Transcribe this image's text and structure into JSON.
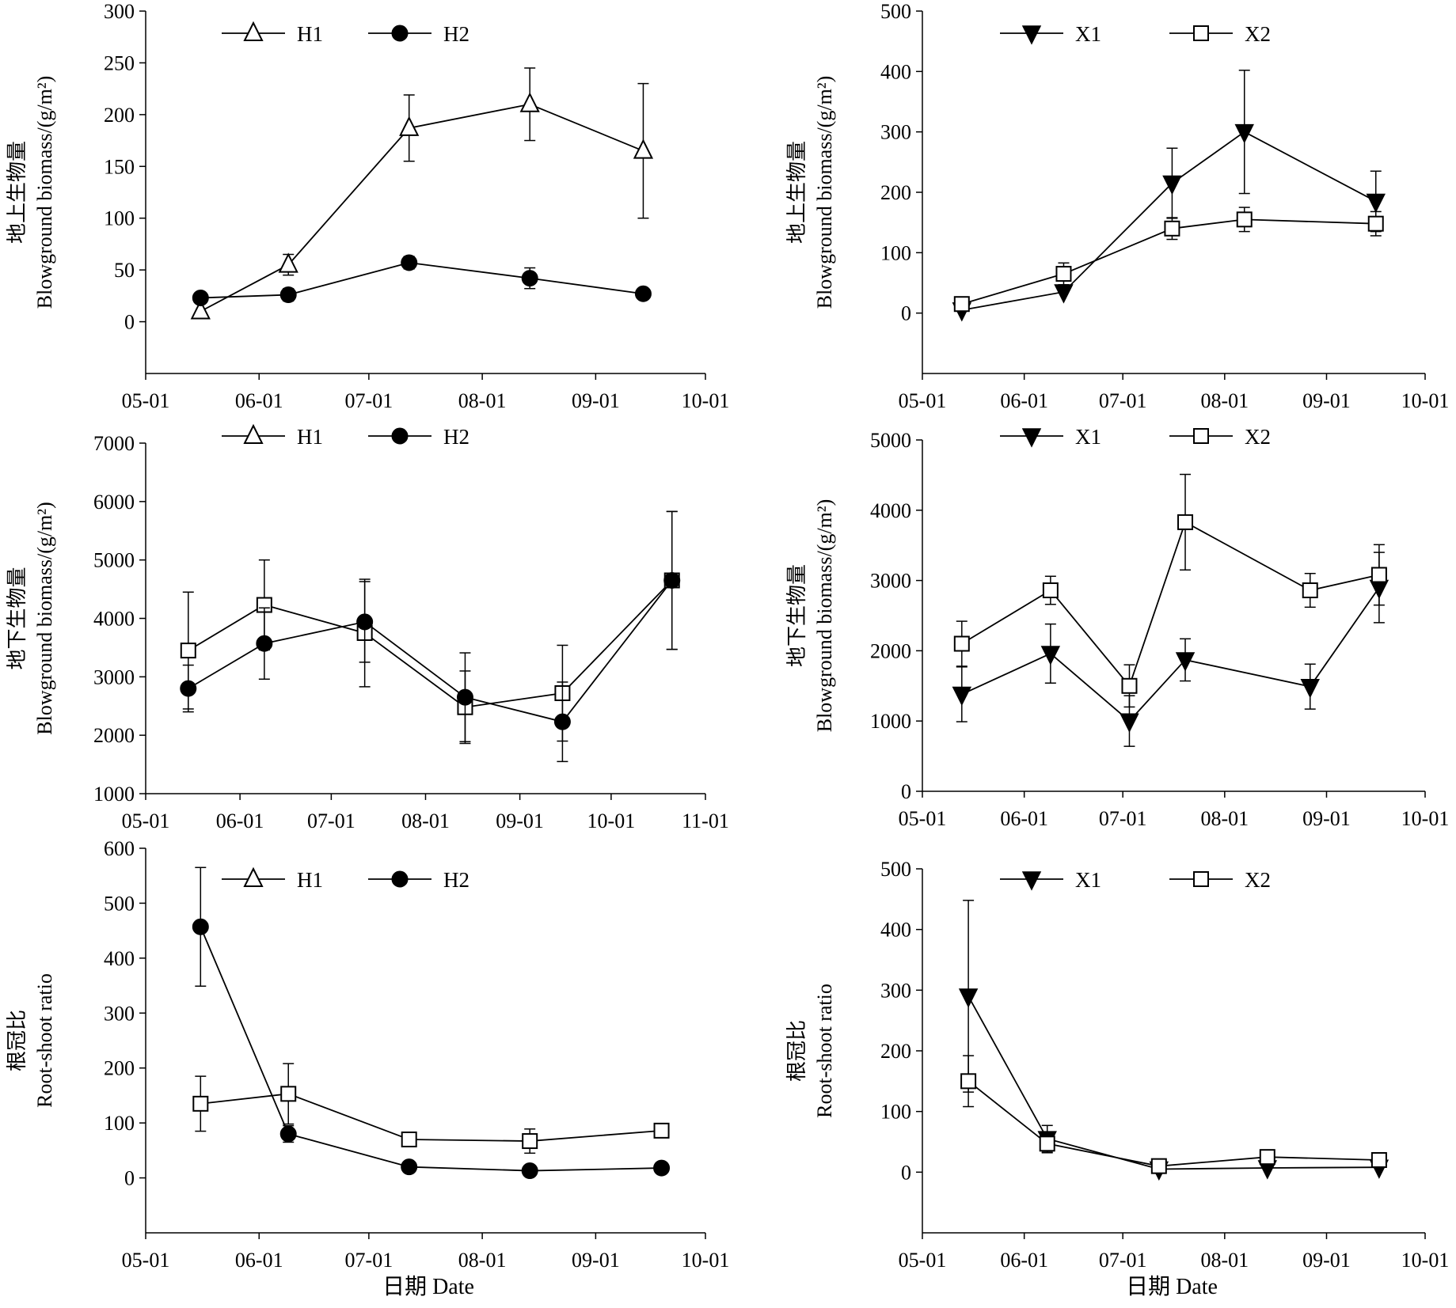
{
  "figure": {
    "x_axis_title": "日期 Date"
  },
  "chart_data": [
    {
      "type": "line",
      "panel": "top-left",
      "ylabel_zh": "地上生物量",
      "ylabel_en": "Blowground biomass/(g/m²)",
      "ylim": [
        -50,
        300
      ],
      "yticks": [
        0,
        50,
        100,
        150,
        200,
        250,
        300
      ],
      "xticks": [
        "05-01",
        "06-01",
        "07-01",
        "08-01",
        "09-01",
        "10-01"
      ],
      "xlim": [
        "05-01",
        "10-01"
      ],
      "legend_position": "top-center",
      "series": [
        {
          "name": "H1",
          "marker": "triangle-open",
          "x": [
            "05-16",
            "06-09",
            "07-12",
            "08-14",
            "09-14"
          ],
          "y": [
            10,
            55,
            187,
            210,
            165
          ],
          "err": [
            0,
            10,
            32,
            35,
            65
          ]
        },
        {
          "name": "H2",
          "marker": "circle-filled",
          "x": [
            "05-16",
            "06-09",
            "07-12",
            "08-14",
            "09-14"
          ],
          "y": [
            23,
            26,
            57,
            42,
            27
          ],
          "err": [
            0,
            6,
            6,
            10,
            0
          ]
        }
      ]
    },
    {
      "type": "line",
      "panel": "top-right",
      "ylabel_zh": "地上生物量",
      "ylabel_en": "Blowground biomass/(g/m²)",
      "ylim": [
        -100,
        500
      ],
      "yticks": [
        0,
        100,
        200,
        300,
        400,
        500
      ],
      "xticks": [
        "05-01",
        "06-01",
        "07-01",
        "08-01",
        "09-01",
        "10-01"
      ],
      "xlim": [
        "05-01",
        "10-01"
      ],
      "legend_position": "top-center",
      "series": [
        {
          "name": "X1",
          "marker": "triangle-down-filled",
          "x": [
            "05-13",
            "06-13",
            "07-16",
            "08-07",
            "09-16"
          ],
          "y": [
            5,
            35,
            215,
            300,
            185
          ],
          "err": [
            0,
            0,
            58,
            102,
            50
          ]
        },
        {
          "name": "X2",
          "marker": "square-open",
          "x": [
            "05-13",
            "06-13",
            "07-16",
            "08-07",
            "09-16"
          ],
          "y": [
            15,
            65,
            140,
            155,
            148
          ],
          "err": [
            0,
            18,
            18,
            20,
            20
          ]
        }
      ]
    },
    {
      "type": "line",
      "panel": "middle-left",
      "ylabel_zh": "地下生物量",
      "ylabel_en": "Blowground biomass/(g/m²)",
      "ylim": [
        1000,
        7000
      ],
      "yticks": [
        1000,
        2000,
        3000,
        4000,
        5000,
        6000,
        7000
      ],
      "xticks": [
        "05-01",
        "06-01",
        "07-01",
        "08-01",
        "09-01",
        "10-01",
        "11-01"
      ],
      "xlim": [
        "05-01",
        "11-01"
      ],
      "legend_position": "top-center",
      "legend": [
        "H1",
        "H2"
      ],
      "series": [
        {
          "name": "",
          "marker": "square-open",
          "x": [
            "05-15",
            "06-09",
            "07-12",
            "08-14",
            "09-15",
            "10-21"
          ],
          "y": [
            3450,
            4230,
            3750,
            2480,
            2720,
            4650
          ],
          "err": [
            1000,
            770,
            920,
            620,
            820,
            1180
          ]
        },
        {
          "name": "",
          "marker": "circle-filled",
          "x": [
            "05-15",
            "06-09",
            "07-12",
            "08-14",
            "09-15",
            "10-21"
          ],
          "y": [
            2800,
            3570,
            3940,
            2650,
            2230,
            4650
          ],
          "err": [
            400,
            610,
            690,
            760,
            680,
            1180
          ]
        }
      ]
    },
    {
      "type": "line",
      "panel": "middle-right",
      "ylabel_zh": "地下生物量",
      "ylabel_en": "Blowground biomass/(g/m²)",
      "ylim": [
        0,
        5000
      ],
      "yticks": [
        0,
        1000,
        2000,
        3000,
        4000,
        5000
      ],
      "xticks": [
        "05-01",
        "06-01",
        "07-01",
        "08-01",
        "09-01",
        "10-01"
      ],
      "xlim": [
        "05-01",
        "10-01"
      ],
      "legend_position": "top-center",
      "series": [
        {
          "name": "X1",
          "marker": "triangle-down-filled",
          "x": [
            "05-13",
            "06-09",
            "07-03",
            "07-20",
            "08-27",
            "09-17"
          ],
          "y": [
            1380,
            1960,
            1000,
            1870,
            1490,
            2900
          ],
          "err": [
            390,
            420,
            360,
            300,
            320,
            500
          ]
        },
        {
          "name": "X2",
          "marker": "square-open",
          "x": [
            "05-13",
            "06-09",
            "07-03",
            "07-20",
            "08-27",
            "09-17"
          ],
          "y": [
            2100,
            2860,
            1500,
            3830,
            2860,
            3080
          ],
          "err": [
            320,
            200,
            300,
            680,
            240,
            430
          ]
        }
      ]
    },
    {
      "type": "line",
      "panel": "bottom-left",
      "ylabel_zh": "根冠比",
      "ylabel_en": "Root-shoot ratio",
      "ylim": [
        -100,
        600
      ],
      "yticks": [
        0,
        100,
        200,
        300,
        400,
        500,
        600
      ],
      "xticks": [
        "05-01",
        "06-01",
        "07-01",
        "08-01",
        "09-01",
        "10-01"
      ],
      "xlim": [
        "05-01",
        "10-01"
      ],
      "legend_position": "top-center",
      "legend": [
        "H1",
        "H2"
      ],
      "series": [
        {
          "name": "",
          "marker": "square-open",
          "x": [
            "05-16",
            "06-09",
            "07-12",
            "08-14",
            "09-19"
          ],
          "y": [
            135,
            153,
            70,
            67,
            86
          ],
          "err": [
            50,
            55,
            12,
            22,
            0
          ]
        },
        {
          "name": "",
          "marker": "circle-filled",
          "x": [
            "05-16",
            "06-09",
            "07-12",
            "08-14",
            "09-19"
          ],
          "y": [
            457,
            80,
            20,
            13,
            18
          ],
          "err": [
            108,
            15,
            0,
            0,
            0
          ]
        }
      ]
    },
    {
      "type": "line",
      "panel": "bottom-right",
      "ylabel_zh": "根冠比",
      "ylabel_en": "Root-shoot ratio",
      "ylim": [
        -100,
        500
      ],
      "yticks": [
        0,
        100,
        200,
        300,
        400,
        500
      ],
      "xticks": [
        "05-01",
        "06-01",
        "07-01",
        "08-01",
        "09-01",
        "10-01"
      ],
      "xlim": [
        "05-01",
        "10-01"
      ],
      "legend_position": "top-center",
      "series": [
        {
          "name": "X1",
          "marker": "triangle-down-filled",
          "x": [
            "05-15",
            "06-08",
            "07-12",
            "08-14",
            "09-17"
          ],
          "y": [
            290,
            55,
            5,
            7,
            8
          ],
          "err": [
            158,
            22,
            0,
            0,
            0
          ]
        },
        {
          "name": "X2",
          "marker": "square-open",
          "x": [
            "05-15",
            "06-08",
            "07-12",
            "08-14",
            "09-17"
          ],
          "y": [
            150,
            47,
            10,
            25,
            20
          ],
          "err": [
            42,
            15,
            0,
            0,
            0
          ]
        }
      ]
    }
  ]
}
